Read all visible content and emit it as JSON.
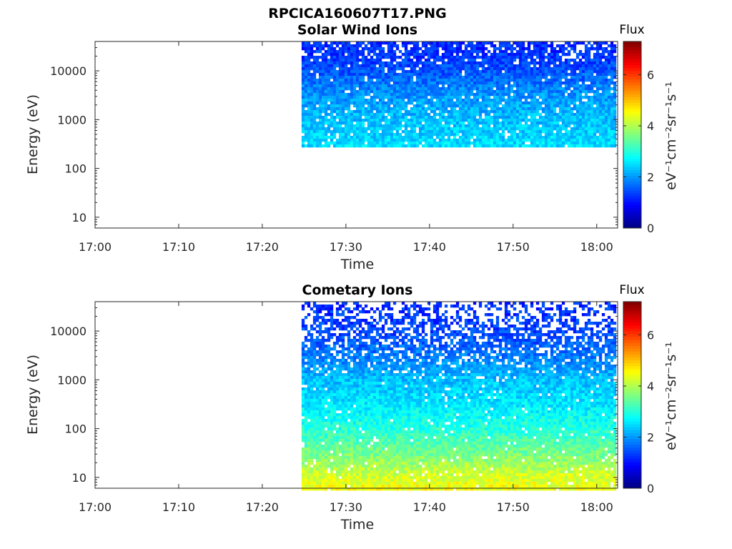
{
  "figure": {
    "title": "RPCICA160607T17.PNG"
  },
  "colorbar": {
    "title": "Flux",
    "unit": "eV⁻¹cm⁻²sr⁻¹s⁻¹",
    "ticks": [
      "0",
      "2",
      "4",
      "6"
    ],
    "range": [
      0,
      7.3
    ]
  },
  "chart_data": [
    {
      "type": "heatmap",
      "title": "Solar Wind Ions",
      "xlabel": "Time",
      "ylabel": "Energy (eV)",
      "x_ticks": [
        "17:00",
        "17:10",
        "17:20",
        "17:30",
        "17:40",
        "17:50",
        "18:00"
      ],
      "y_ticks": [
        "10",
        "100",
        "1000",
        "10000"
      ],
      "y_scale": "log",
      "x_range": [
        "17:00",
        "18:02.5"
      ],
      "y_range_eV": [
        6,
        40000
      ],
      "data_start": "17:24.7",
      "data_end": "18:02.3",
      "energy_profile": [
        {
          "energy_eV": 300,
          "flux": 2.5
        },
        {
          "energy_eV": 500,
          "flux": 2.4
        },
        {
          "energy_eV": 1000,
          "flux": 2.3
        },
        {
          "energy_eV": 3000,
          "flux": 2.0
        },
        {
          "energy_eV": 10000,
          "flux": 1.5
        },
        {
          "energy_eV": 20000,
          "flux": 1.3
        },
        {
          "energy_eV": 40000,
          "flux": 1.2
        }
      ],
      "energy_cutoff_eV": 280,
      "colorbar_label": "Flux"
    },
    {
      "type": "heatmap",
      "title": "Cometary Ions",
      "xlabel": "Time",
      "ylabel": "Energy (eV)",
      "x_ticks": [
        "17:00",
        "17:10",
        "17:20",
        "17:30",
        "17:40",
        "17:50",
        "18:00"
      ],
      "y_ticks": [
        "10",
        "100",
        "1000",
        "10000"
      ],
      "y_scale": "log",
      "x_range": [
        "17:00",
        "18:02.5"
      ],
      "y_range_eV": [
        6,
        40000
      ],
      "data_start": "17:24.7",
      "data_end": "18:02.3",
      "energy_profile": [
        {
          "energy_eV": 6,
          "flux": 4.5
        },
        {
          "energy_eV": 10,
          "flux": 4.3
        },
        {
          "energy_eV": 30,
          "flux": 3.6
        },
        {
          "energy_eV": 100,
          "flux": 3.0
        },
        {
          "energy_eV": 300,
          "flux": 2.6
        },
        {
          "energy_eV": 1000,
          "flux": 2.3
        },
        {
          "energy_eV": 3000,
          "flux": 1.8
        },
        {
          "energy_eV": 10000,
          "flux": 1.4
        },
        {
          "energy_eV": 40000,
          "flux": 1.2
        }
      ],
      "energy_cutoff_eV": 6,
      "colorbar_label": "Flux"
    }
  ]
}
